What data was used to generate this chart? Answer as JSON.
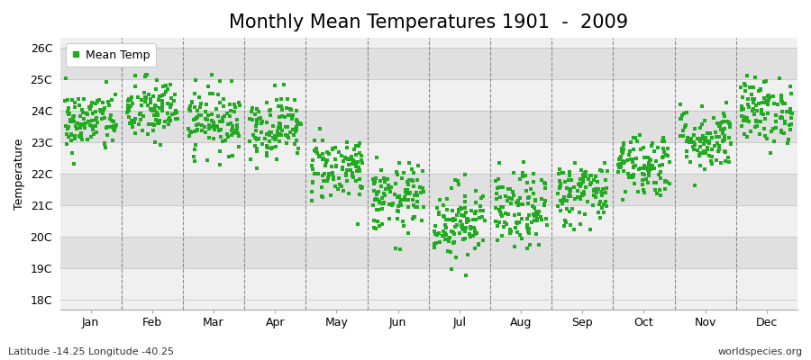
{
  "title": "Monthly Mean Temperatures 1901  -  2009",
  "ylabel": "Temperature",
  "xlabel_labels": [
    "Jan",
    "Feb",
    "Mar",
    "Apr",
    "May",
    "Jun",
    "Jul",
    "Aug",
    "Sep",
    "Oct",
    "Nov",
    "Dec"
  ],
  "ytick_labels": [
    "18C",
    "19C",
    "20C",
    "21C",
    "22C",
    "23C",
    "24C",
    "25C",
    "26C"
  ],
  "ytick_values": [
    18,
    19,
    20,
    21,
    22,
    23,
    24,
    25,
    26
  ],
  "ylim": [
    17.7,
    26.3
  ],
  "dot_color": "#22AA22",
  "legend_label": "Mean Temp",
  "footer_left": "Latitude -14.25 Longitude -40.25",
  "footer_right": "worldspecies.org",
  "background_color": "#FFFFFF",
  "plot_bg_color": "#F0F0F0",
  "band_color_light": "#F0F0F0",
  "band_color_dark": "#E0E0E0",
  "monthly_means": [
    23.65,
    24.0,
    23.7,
    23.5,
    22.2,
    21.2,
    20.5,
    20.8,
    21.4,
    22.3,
    23.1,
    24.0
  ],
  "monthly_stds": [
    0.5,
    0.52,
    0.52,
    0.5,
    0.52,
    0.55,
    0.6,
    0.6,
    0.52,
    0.52,
    0.52,
    0.52
  ],
  "n_years": 109,
  "seed": 42,
  "title_fontsize": 15,
  "axis_fontsize": 9,
  "legend_fontsize": 9,
  "footer_fontsize": 8,
  "dot_size": 5
}
